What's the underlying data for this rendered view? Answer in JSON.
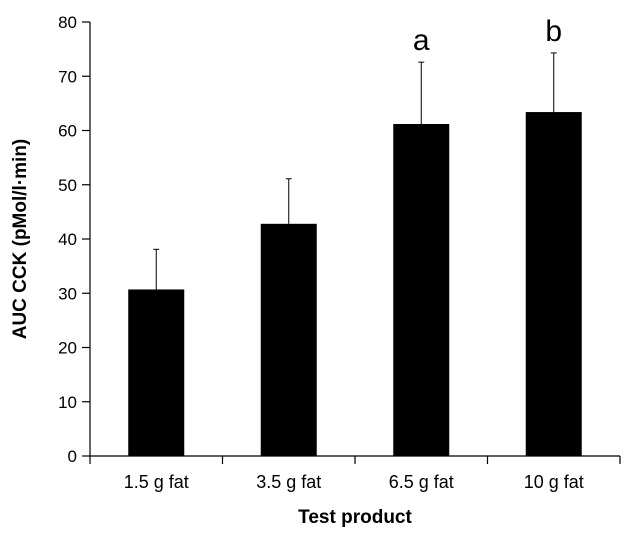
{
  "chart_data": {
    "type": "bar",
    "categories": [
      "1.5 g fat",
      "3.5 g fat",
      "6.5 g fat",
      "10 g fat"
    ],
    "values": [
      30.7,
      42.8,
      61.2,
      63.4
    ],
    "error_upper": [
      38.1,
      51.1,
      72.6,
      74.3
    ],
    "annotations": [
      "",
      "",
      "a",
      "b"
    ],
    "xlabel": "Test product",
    "ylabel": "AUC CCK (pMol/l·min)",
    "ylim": [
      0,
      80
    ],
    "yticks": [
      0,
      10,
      20,
      30,
      40,
      50,
      60,
      70,
      80
    ],
    "bar_color": "#000000",
    "grid": false
  }
}
